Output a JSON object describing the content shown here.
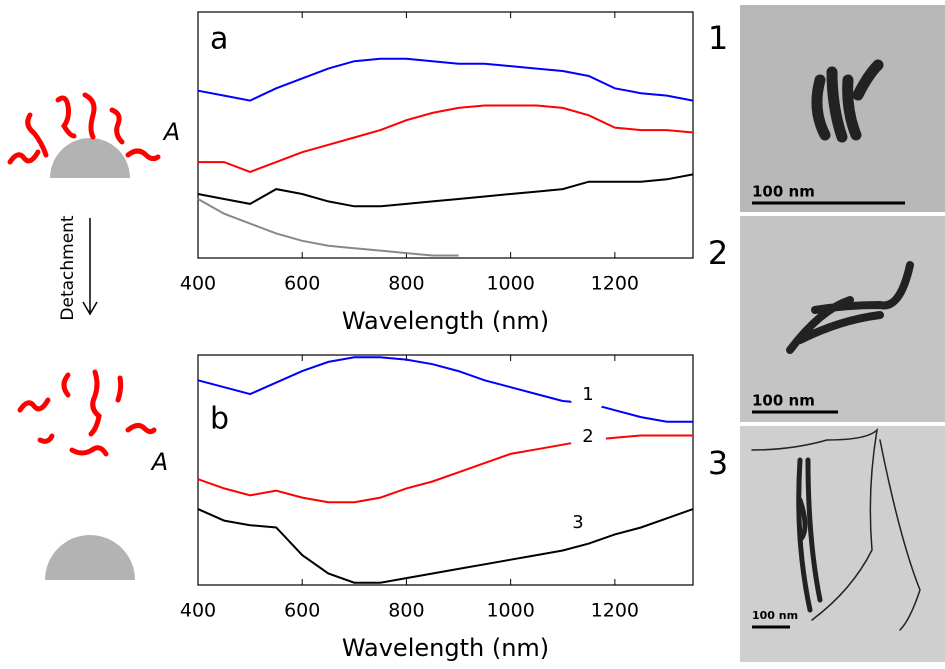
{
  "chart_data": [
    {
      "type": "line",
      "panel": "a",
      "xlabel": "Wavelength (nm)",
      "ylabel": "A",
      "x": [
        400,
        450,
        500,
        550,
        600,
        650,
        700,
        750,
        800,
        850,
        900,
        950,
        1000,
        1050,
        1100,
        1150,
        1200,
        1250,
        1300,
        1350
      ],
      "xlim": [
        400,
        1350
      ],
      "xticks": [
        400,
        600,
        800,
        1000,
        1200
      ],
      "ylim": [
        0,
        1
      ],
      "series": [
        {
          "color": "#0000ff",
          "values": [
            0.68,
            0.66,
            0.64,
            0.69,
            0.73,
            0.77,
            0.8,
            0.81,
            0.81,
            0.8,
            0.79,
            0.79,
            0.78,
            0.77,
            0.76,
            0.74,
            0.69,
            0.67,
            0.66,
            0.64
          ]
        },
        {
          "color": "#ff0000",
          "values": [
            0.39,
            0.39,
            0.35,
            0.39,
            0.43,
            0.46,
            0.49,
            0.52,
            0.56,
            0.59,
            0.61,
            0.62,
            0.62,
            0.62,
            0.61,
            0.58,
            0.53,
            0.52,
            0.52,
            0.51
          ]
        },
        {
          "color": "#000000",
          "values": [
            0.26,
            0.24,
            0.22,
            0.28,
            0.26,
            0.23,
            0.21,
            0.21,
            0.22,
            0.23,
            0.24,
            0.25,
            0.26,
            0.27,
            0.28,
            0.31,
            0.31,
            0.31,
            0.32,
            0.34
          ]
        },
        {
          "color": "#888888",
          "values": [
            0.24,
            0.18,
            0.14,
            0.1,
            0.07,
            0.05,
            0.04,
            0.03,
            0.02,
            0.01,
            0.01,
            null,
            null,
            null,
            null,
            null,
            null,
            null,
            null,
            null
          ]
        }
      ]
    },
    {
      "type": "line",
      "panel": "b",
      "xlabel": "Wavelength (nm)",
      "ylabel": "A",
      "x": [
        400,
        450,
        500,
        550,
        600,
        650,
        700,
        750,
        800,
        850,
        900,
        950,
        1000,
        1050,
        1100,
        1150,
        1200,
        1250,
        1300,
        1350
      ],
      "xlim": [
        400,
        1350
      ],
      "xticks": [
        400,
        600,
        800,
        1000,
        1200
      ],
      "ylim": [
        0,
        1
      ],
      "annotations": [
        "1",
        "2",
        "3"
      ],
      "series": [
        {
          "color": "#0000ff",
          "values": [
            0.89,
            0.86,
            0.83,
            0.88,
            0.93,
            0.97,
            0.99,
            0.99,
            0.98,
            0.96,
            0.93,
            0.89,
            0.86,
            0.83,
            0.8,
            0.79,
            0.76,
            0.73,
            0.71,
            0.71
          ]
        },
        {
          "color": "#ff0000",
          "values": [
            0.46,
            0.42,
            0.39,
            0.41,
            0.38,
            0.36,
            0.36,
            0.38,
            0.42,
            0.45,
            0.49,
            0.53,
            0.57,
            0.59,
            0.61,
            0.63,
            0.64,
            0.65,
            0.65,
            0.65
          ]
        },
        {
          "color": "#000000",
          "values": [
            0.33,
            0.28,
            0.26,
            0.25,
            0.13,
            0.05,
            0.01,
            0.01,
            0.03,
            0.05,
            0.07,
            0.09,
            0.11,
            0.13,
            0.15,
            0.18,
            0.22,
            0.25,
            0.29,
            0.33
          ]
        }
      ]
    }
  ],
  "diagram": {
    "label": "Detachment"
  },
  "images": [
    {
      "label": "1",
      "scale_bar": "100 nm"
    },
    {
      "label": "2",
      "scale_bar": "100 nm"
    },
    {
      "label": "3",
      "scale_bar": "100 nm"
    }
  ]
}
